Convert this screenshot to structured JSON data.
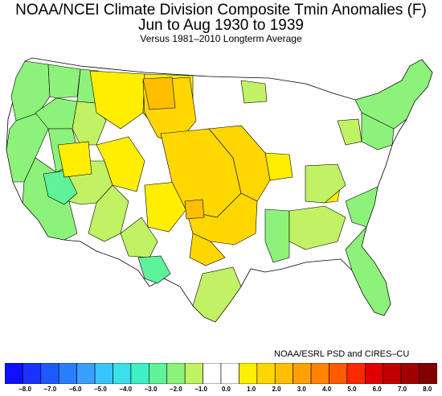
{
  "titles": {
    "line1": "NOAA/NCEI Climate Division Composite Tmin Anomalies (F)",
    "line2": "Jun to Aug 1930 to 1939",
    "line3": "Versus 1981–2010 Longterm Average"
  },
  "credit": "NOAA/ESRL PSD and CIRES–CU",
  "legend": {
    "colors": [
      "#1010ff",
      "#1a32ff",
      "#1d59ff",
      "#2a7dff",
      "#3aa0ff",
      "#38c4ff",
      "#3be0e8",
      "#3ff0c4",
      "#5ef29a",
      "#8df27a",
      "#c0f263",
      "#ffffff",
      "#ffffff",
      "#ffee00",
      "#ffd700",
      "#ffbe00",
      "#ffa100",
      "#ff8400",
      "#ff5a00",
      "#ff2800",
      "#e00000",
      "#c00000",
      "#a00000",
      "#800000"
    ],
    "tick_labels": [
      "−8.0",
      "−7.0",
      "−6.0",
      "−5.0",
      "−4.0",
      "−3.0",
      "−2.0",
      "−1.0",
      "0.0",
      "1.0",
      "2.0",
      "3.0",
      "4.0",
      "5.0",
      "6.0",
      "7.0",
      "8.0"
    ]
  },
  "map": {
    "colors": {
      "slightly_cool": "#c0f263",
      "cool": "#8df27a",
      "cooler": "#5ef29a",
      "neutral": "#ffffff",
      "warm1": "#ffee00",
      "warm2": "#ffd700",
      "warm3": "#ffbe00",
      "border": "#000000"
    }
  }
}
